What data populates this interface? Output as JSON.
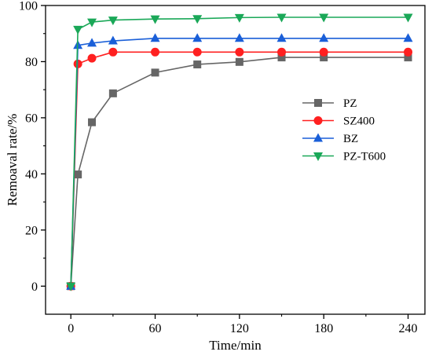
{
  "chart_data": {
    "type": "line",
    "xlabel": "Time/min",
    "ylabel": "Remoaval rate/%",
    "xlim": [
      -18,
      252
    ],
    "ylim": [
      -10,
      100
    ],
    "x_ticks": [
      0,
      60,
      120,
      180,
      240
    ],
    "y_ticks": [
      0,
      20,
      40,
      60,
      80,
      100
    ],
    "grid": false,
    "legend_position": "center-right",
    "x": [
      0,
      5,
      15,
      30,
      60,
      90,
      120,
      150,
      180,
      240
    ],
    "series": [
      {
        "name": "PZ",
        "color": "#666666",
        "marker": "square",
        "values": [
          0,
          39.8,
          58.4,
          68.7,
          76.1,
          79.0,
          79.9,
          81.5,
          81.5,
          81.5
        ]
      },
      {
        "name": "SZ400",
        "color": "#ff2020",
        "marker": "circle",
        "values": [
          0,
          79.2,
          81.2,
          83.4,
          83.4,
          83.4,
          83.4,
          83.4,
          83.4,
          83.4
        ]
      },
      {
        "name": "BZ",
        "color": "#1a5fd8",
        "marker": "triangle-up",
        "values": [
          0,
          85.8,
          86.6,
          87.4,
          88.3,
          88.3,
          88.3,
          88.3,
          88.3,
          88.3
        ]
      },
      {
        "name": "PZ-T600",
        "color": "#1aa858",
        "marker": "triangle-down",
        "values": [
          0,
          91.5,
          94.1,
          94.8,
          95.2,
          95.3,
          95.7,
          95.8,
          95.8,
          95.8
        ]
      }
    ]
  }
}
